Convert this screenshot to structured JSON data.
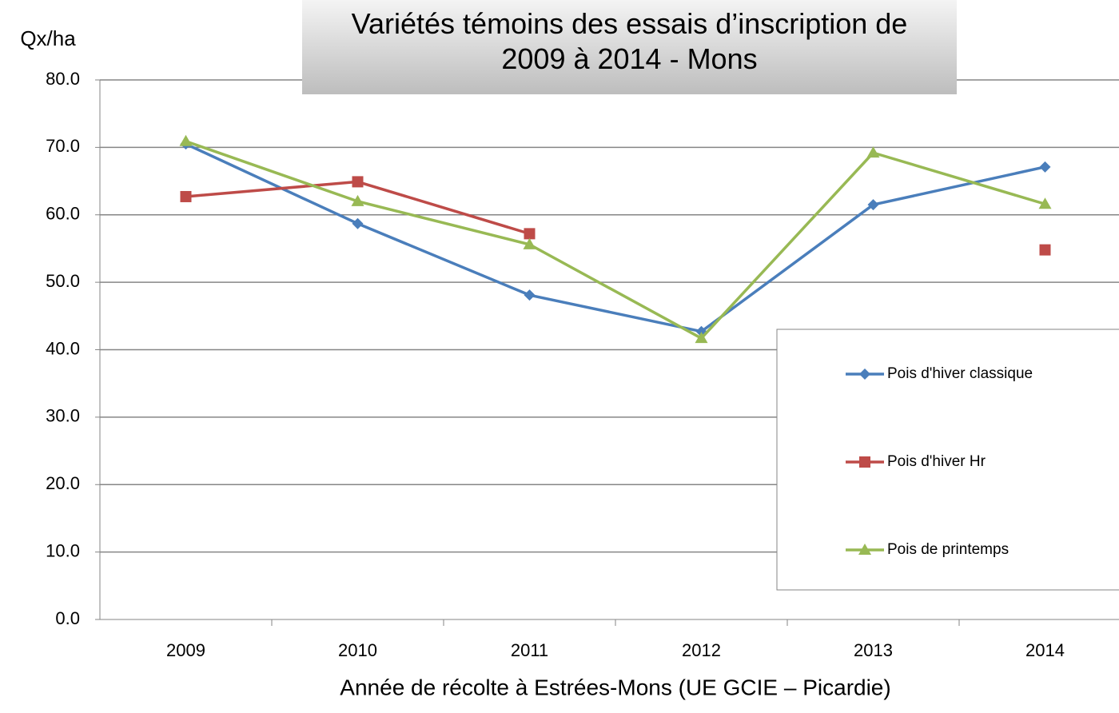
{
  "chart_data": {
    "type": "line",
    "title": "Variétés témoins des essais d’inscription de 2009 à 2014 - Mons",
    "y_label": "Qx/ha",
    "x_label": "Année de récolte à Estrées-Mons (UE GCIE – Picardie)",
    "categories": [
      "2009",
      "2010",
      "2011",
      "2012",
      "2013",
      "2014"
    ],
    "series": [
      {
        "name": "Pois d'hiver classique",
        "color": "#4a7ebb",
        "marker": "diamond",
        "values": [
          70.5,
          58.7,
          48.1,
          42.7,
          61.5,
          67.1
        ]
      },
      {
        "name": "Pois d'hiver Hr",
        "color": "#be4b48",
        "marker": "square",
        "values": [
          62.7,
          64.9,
          57.2,
          null,
          null,
          54.8
        ]
      },
      {
        "name": "Pois de printemps",
        "color": "#98b954",
        "marker": "triangle",
        "values": [
          70.9,
          62.0,
          55.6,
          41.7,
          69.2,
          61.6
        ]
      }
    ],
    "ylim": [
      0,
      80
    ],
    "yticks": [
      {
        "value": 0,
        "label": "0.0"
      },
      {
        "value": 10,
        "label": "10.0"
      },
      {
        "value": 20,
        "label": "20.0"
      },
      {
        "value": 30,
        "label": "30.0"
      },
      {
        "value": 40,
        "label": "40.0"
      },
      {
        "value": 50,
        "label": "50.0"
      },
      {
        "value": 60,
        "label": "60.0"
      },
      {
        "value": 70,
        "label": "70.0"
      },
      {
        "value": 80,
        "label": "80.0"
      }
    ],
    "grid": true
  }
}
